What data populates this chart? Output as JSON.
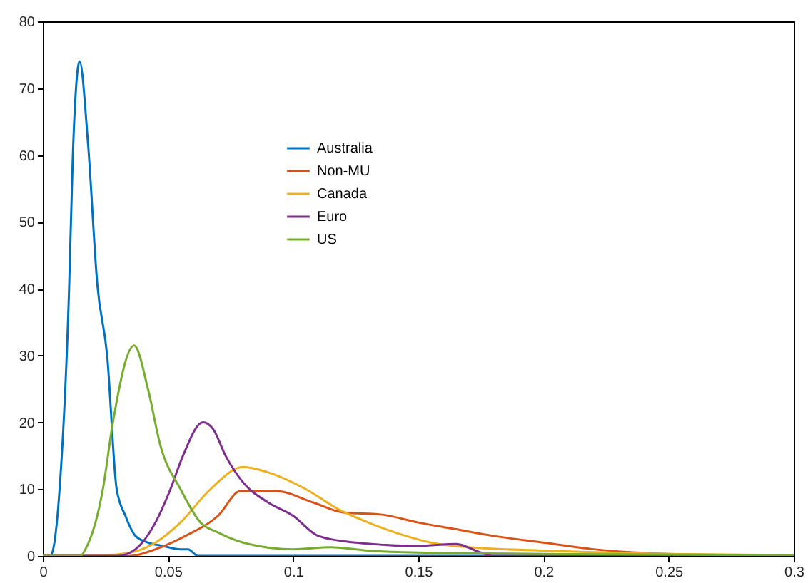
{
  "chart_data": {
    "type": "line",
    "xlim": [
      0,
      0.3
    ],
    "xticks": [
      0,
      0.05,
      0.1,
      0.15,
      0.2,
      0.25,
      0.3
    ],
    "ylim": [
      0,
      80
    ],
    "yticks": [
      0,
      10,
      20,
      30,
      40,
      50,
      60,
      70,
      80
    ],
    "grid": false,
    "legend": "top left",
    "marker": "none",
    "line_style": "solid",
    "series": [
      {
        "name": "Australia",
        "color": "#0072bd",
        "x": [
          0,
          0.003,
          0.0067,
          0.0105,
          0.012,
          0.0147,
          0.018,
          0.0218,
          0.0257,
          0.0295,
          0.033,
          0.037,
          0.042,
          0.048,
          0.055,
          0.058,
          0.062,
          0.3
        ],
        "values": [
          0,
          0,
          10,
          40,
          60,
          74,
          62,
          40.5,
          30,
          10,
          6,
          3,
          2,
          1.5,
          1,
          1,
          0,
          0
        ]
      },
      {
        "name": "Non-MU",
        "color": "#d95319",
        "x": [
          0,
          0.035,
          0.045,
          0.057,
          0.07,
          0.079,
          0.093,
          0.108,
          0.12,
          0.135,
          0.15,
          0.165,
          0.18,
          0.2,
          0.22,
          0.25,
          0.28,
          0.3
        ],
        "values": [
          0,
          0,
          1,
          3,
          6,
          9.7,
          9.7,
          8,
          6.5,
          6.2,
          5,
          4,
          3,
          2,
          1,
          0.3,
          0.1,
          0
        ]
      },
      {
        "name": "Canada",
        "color": "#edb120",
        "x": [
          0,
          0.02,
          0.035,
          0.045,
          0.055,
          0.067,
          0.08,
          0.09,
          0.105,
          0.118,
          0.13,
          0.145,
          0.155,
          0.17,
          0.2,
          0.25,
          0.3
        ],
        "values": [
          0,
          0,
          0.5,
          2,
          5,
          10,
          13.3,
          12.5,
          10,
          7,
          5,
          3,
          2,
          1.3,
          0.8,
          0.3,
          0.1
        ]
      },
      {
        "name": "Euro",
        "color": "#7e2f8e",
        "x": [
          0,
          0.03,
          0.037,
          0.045,
          0.051,
          0.056,
          0.064,
          0.068,
          0.073,
          0.08,
          0.09,
          0.1,
          0.11,
          0.125,
          0.15,
          0.165,
          0.175,
          0.18,
          0.3
        ],
        "values": [
          0,
          0,
          1,
          5,
          10,
          15,
          20,
          19,
          15,
          11,
          8,
          6,
          3,
          2,
          1.5,
          1.8,
          0.5,
          0,
          0
        ]
      },
      {
        "name": "US",
        "color": "#77ac30",
        "x": [
          0,
          0.015,
          0.017,
          0.024,
          0.028,
          0.0365,
          0.042,
          0.047,
          0.055,
          0.063,
          0.07,
          0.08,
          0.1,
          0.115,
          0.13,
          0.15,
          0.2,
          0.3
        ],
        "values": [
          0,
          0,
          1,
          10,
          20,
          31.5,
          25,
          16.5,
          10,
          5,
          3.5,
          2,
          1,
          1.3,
          0.8,
          0.5,
          0.3,
          0.1
        ]
      }
    ]
  }
}
